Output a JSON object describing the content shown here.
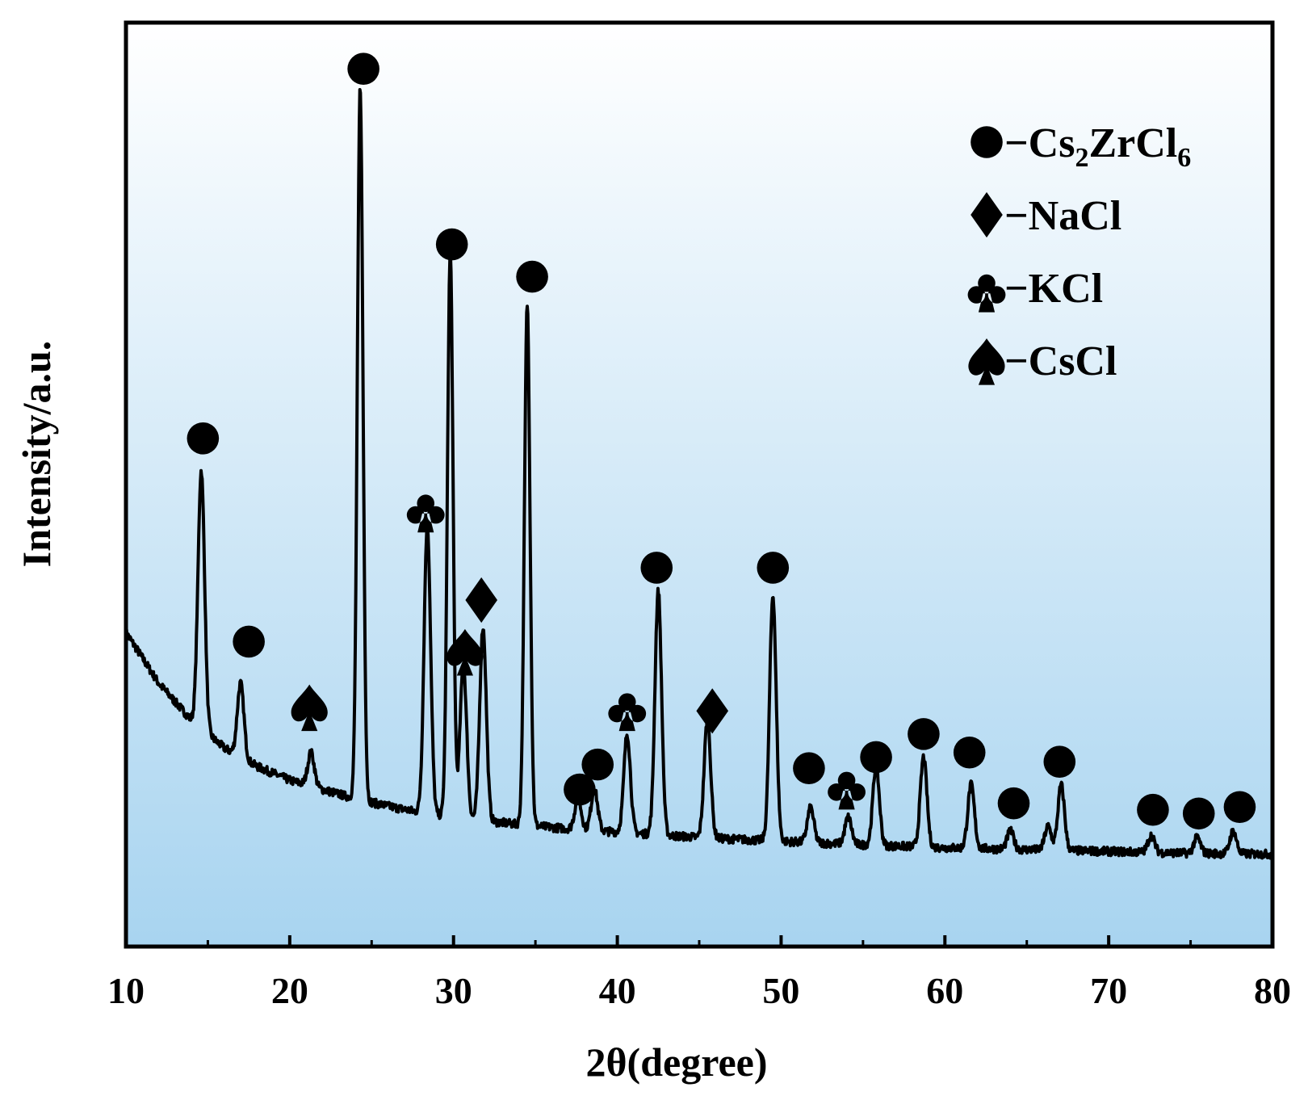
{
  "chart_data": {
    "type": "line",
    "title": "",
    "xlabel": "2θ(degree)",
    "ylabel": "Intensity/a.u.",
    "xlim": [
      10,
      80
    ],
    "ylim": [
      0,
      100
    ],
    "xticks": [
      10,
      20,
      30,
      40,
      50,
      60,
      70,
      80
    ],
    "tick_labels": [
      "10",
      "20",
      "30",
      "40",
      "50",
      "60",
      "70",
      "80"
    ],
    "grid": false,
    "y_ticks_shown": false,
    "colors": {
      "line": "#000000",
      "frame": "#000000",
      "gradient_top": "#ffffff",
      "gradient_bottom": "#a8d4f0"
    },
    "baseline": [
      [
        10,
        34.0
      ],
      [
        12,
        28.5
      ],
      [
        14,
        24.5
      ],
      [
        16,
        21.5
      ],
      [
        18,
        19.5
      ],
      [
        20,
        18.0
      ],
      [
        22,
        17.0
      ],
      [
        24,
        16.0
      ],
      [
        26,
        15.2
      ],
      [
        28,
        14.5
      ],
      [
        30,
        14.0
      ],
      [
        32,
        13.6
      ],
      [
        34,
        13.2
      ],
      [
        36,
        12.9
      ],
      [
        38,
        12.6
      ],
      [
        40,
        12.4
      ],
      [
        45,
        11.8
      ],
      [
        50,
        11.4
      ],
      [
        55,
        11.0
      ],
      [
        60,
        10.7
      ],
      [
        65,
        10.5
      ],
      [
        70,
        10.3
      ],
      [
        75,
        10.1
      ],
      [
        80,
        10.0
      ]
    ],
    "peaks": [
      {
        "x": 14.6,
        "y": 51.5,
        "phase": "Cs2ZrCl6"
      },
      {
        "x": 17.0,
        "y": 28.5,
        "phase": "Cs2ZrCl6"
      },
      {
        "x": 21.3,
        "y": 21.0,
        "phase": "CsCl"
      },
      {
        "x": 24.3,
        "y": 93.0,
        "phase": "Cs2ZrCl6"
      },
      {
        "x": 28.4,
        "y": 45.5,
        "phase": "KCl"
      },
      {
        "x": 29.8,
        "y": 75.0,
        "phase": "Cs2ZrCl6"
      },
      {
        "x": 30.6,
        "y": 30.5,
        "phase": "CsCl"
      },
      {
        "x": 31.8,
        "y": 34.5,
        "phase": "NaCl"
      },
      {
        "x": 34.5,
        "y": 69.5,
        "phase": "Cs2ZrCl6"
      },
      {
        "x": 37.6,
        "y": 16.0,
        "phase": "Cs2ZrCl6"
      },
      {
        "x": 38.6,
        "y": 17.0,
        "phase": "Cs2ZrCl6"
      },
      {
        "x": 40.6,
        "y": 23.0,
        "phase": "KCl"
      },
      {
        "x": 42.5,
        "y": 38.5,
        "phase": "Cs2ZrCl6"
      },
      {
        "x": 45.5,
        "y": 24.5,
        "phase": "NaCl"
      },
      {
        "x": 49.5,
        "y": 38.0,
        "phase": "Cs2ZrCl6"
      },
      {
        "x": 51.8,
        "y": 15.0,
        "phase": "Cs2ZrCl6"
      },
      {
        "x": 54.1,
        "y": 14.0,
        "phase": "KCl"
      },
      {
        "x": 55.8,
        "y": 19.5,
        "phase": "Cs2ZrCl6"
      },
      {
        "x": 58.7,
        "y": 20.5,
        "phase": "Cs2ZrCl6"
      },
      {
        "x": 61.6,
        "y": 17.5,
        "phase": "Cs2ZrCl6"
      },
      {
        "x": 64.0,
        "y": 12.5,
        "phase": "Cs2ZrCl6"
      },
      {
        "x": 66.3,
        "y": 13.0,
        "phase": "Cs2ZrCl6"
      },
      {
        "x": 67.1,
        "y": 17.5,
        "phase": "Cs2ZrCl6"
      },
      {
        "x": 72.6,
        "y": 12.0,
        "phase": "Cs2ZrCl6"
      },
      {
        "x": 75.4,
        "y": 11.8,
        "phase": "Cs2ZrCl6"
      },
      {
        "x": 77.6,
        "y": 12.5,
        "phase": "Cs2ZrCl6"
      }
    ],
    "markers": [
      {
        "x": 14.7,
        "y": 55.0,
        "symbol": "circle"
      },
      {
        "x": 17.5,
        "y": 33.0,
        "symbol": "circle"
      },
      {
        "x": 21.2,
        "y": 26.0,
        "symbol": "spade"
      },
      {
        "x": 24.5,
        "y": 95.0,
        "symbol": "circle"
      },
      {
        "x": 28.3,
        "y": 47.5,
        "symbol": "club"
      },
      {
        "x": 29.9,
        "y": 76.0,
        "symbol": "circle"
      },
      {
        "x": 30.7,
        "y": 32.0,
        "symbol": "spade"
      },
      {
        "x": 31.7,
        "y": 37.5,
        "symbol": "diamond"
      },
      {
        "x": 34.8,
        "y": 72.5,
        "symbol": "circle"
      },
      {
        "x": 37.7,
        "y": 17.0,
        "symbol": "circle"
      },
      {
        "x": 38.8,
        "y": 19.7,
        "symbol": "circle"
      },
      {
        "x": 40.6,
        "y": 26.0,
        "symbol": "club"
      },
      {
        "x": 42.4,
        "y": 41.0,
        "symbol": "circle"
      },
      {
        "x": 45.8,
        "y": 25.5,
        "symbol": "diamond"
      },
      {
        "x": 49.5,
        "y": 41.0,
        "symbol": "circle"
      },
      {
        "x": 51.7,
        "y": 19.3,
        "symbol": "circle"
      },
      {
        "x": 54.0,
        "y": 17.5,
        "symbol": "club"
      },
      {
        "x": 55.8,
        "y": 20.5,
        "symbol": "circle"
      },
      {
        "x": 58.7,
        "y": 23.0,
        "symbol": "circle"
      },
      {
        "x": 61.5,
        "y": 21.0,
        "symbol": "circle"
      },
      {
        "x": 64.2,
        "y": 15.5,
        "symbol": "circle"
      },
      {
        "x": 67.0,
        "y": 20.0,
        "symbol": "circle"
      },
      {
        "x": 72.7,
        "y": 14.8,
        "symbol": "circle"
      },
      {
        "x": 75.5,
        "y": 14.4,
        "symbol": "circle"
      },
      {
        "x": 78.0,
        "y": 15.1,
        "symbol": "circle"
      }
    ],
    "legend": {
      "position": "top-right",
      "entries": [
        {
          "symbol": "circle",
          "dash": "−",
          "label": "Cs",
          "sub1": "2",
          "mid": "ZrCl",
          "sub2": "6",
          "phase": "Cs2ZrCl6"
        },
        {
          "symbol": "diamond",
          "dash": "−",
          "label": "NaCl",
          "phase": "NaCl"
        },
        {
          "symbol": "club",
          "dash": "−",
          "label": "KCl",
          "phase": "KCl"
        },
        {
          "symbol": "spade",
          "dash": "−",
          "label": "CsCl",
          "phase": "CsCl"
        }
      ]
    }
  }
}
